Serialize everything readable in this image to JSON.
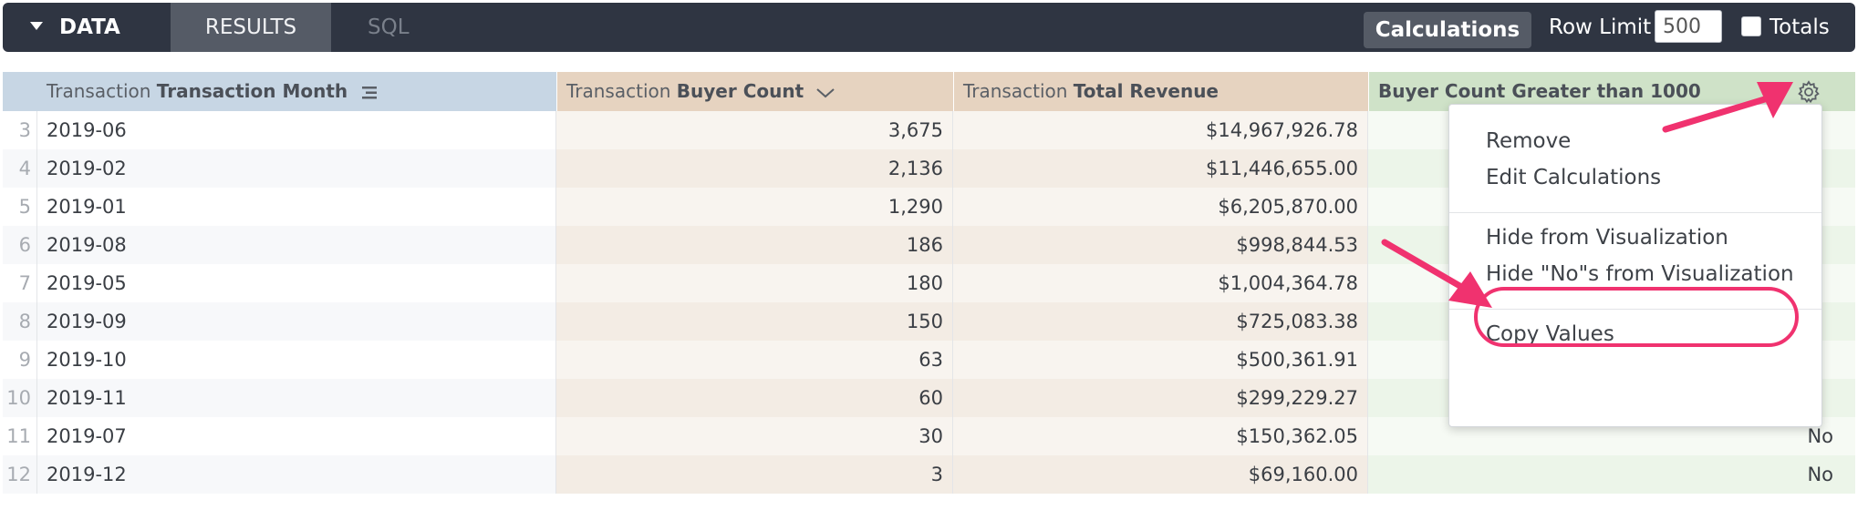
{
  "toolbar": {
    "data_tab": "DATA",
    "results_tab": "RESULTS",
    "sql_tab": "SQL",
    "calculations_button": "Calculations",
    "row_limit_label": "Row Limit",
    "row_limit_value": "500",
    "totals_label": "Totals"
  },
  "table": {
    "headers": {
      "month_prefix": "Transaction",
      "month_name": "Transaction Month",
      "buyer_prefix": "Transaction",
      "buyer_name": "Buyer Count",
      "revenue_prefix": "Transaction",
      "revenue_name": "Total Revenue",
      "calc_name": "Buyer Count Greater than 1000"
    },
    "rows": [
      {
        "index": "3",
        "month": "2019-06",
        "buyer": "3,675",
        "revenue": "$14,967,926.78",
        "calc": ""
      },
      {
        "index": "4",
        "month": "2019-02",
        "buyer": "2,136",
        "revenue": "$11,446,655.00",
        "calc": ""
      },
      {
        "index": "5",
        "month": "2019-01",
        "buyer": "1,290",
        "revenue": "$6,205,870.00",
        "calc": ""
      },
      {
        "index": "6",
        "month": "2019-08",
        "buyer": "186",
        "revenue": "$998,844.53",
        "calc": ""
      },
      {
        "index": "7",
        "month": "2019-05",
        "buyer": "180",
        "revenue": "$1,004,364.78",
        "calc": ""
      },
      {
        "index": "8",
        "month": "2019-09",
        "buyer": "150",
        "revenue": "$725,083.38",
        "calc": ""
      },
      {
        "index": "9",
        "month": "2019-10",
        "buyer": "63",
        "revenue": "$500,361.91",
        "calc": ""
      },
      {
        "index": "10",
        "month": "2019-11",
        "buyer": "60",
        "revenue": "$299,229.27",
        "calc": ""
      },
      {
        "index": "11",
        "month": "2019-07",
        "buyer": "30",
        "revenue": "$150,362.05",
        "calc": "No"
      },
      {
        "index": "12",
        "month": "2019-12",
        "buyer": "3",
        "revenue": "$69,160.00",
        "calc": "No"
      }
    ]
  },
  "menu": {
    "remove": "Remove",
    "edit_calculations": "Edit Calculations",
    "hide_from_viz": "Hide from Visualization",
    "hide_nos_from_viz": "Hide \"No\"s from Visualization",
    "copy_values": "Copy Values"
  },
  "colors": {
    "toolbar_bg": "#2f3542",
    "dimension_header": "#c7d6e4",
    "measure_header": "#e6d3c0",
    "calc_header": "#cfe2c8",
    "annotation_pink": "#f0326f"
  }
}
